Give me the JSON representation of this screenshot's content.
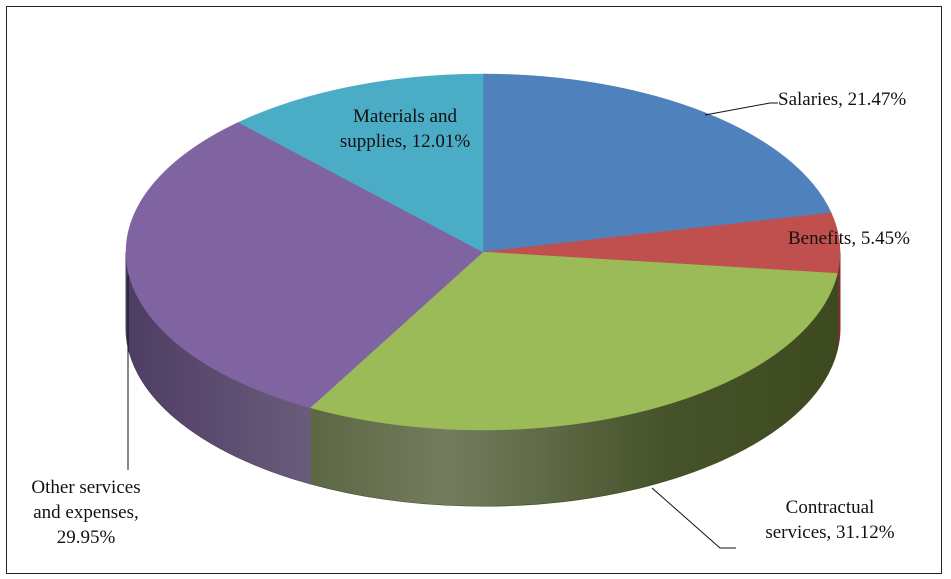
{
  "chart_data": {
    "type": "pie",
    "categories": [
      "Salaries",
      "Benefits",
      "Contractual services",
      "Other services and expenses",
      "Materials and supplies"
    ],
    "values": [
      21.47,
      5.45,
      31.12,
      29.95,
      12.01
    ],
    "unit": "%",
    "labels": [
      {
        "lines": [
          "Salaries, 21.47%"
        ]
      },
      {
        "lines": [
          "Benefits, 5.45%"
        ]
      },
      {
        "lines": [
          "Contractual",
          "services, 31.12%"
        ]
      },
      {
        "lines": [
          "Other services",
          "and expenses,",
          "29.95%"
        ]
      },
      {
        "lines": [
          "Materials and",
          "supplies, 12.01%"
        ]
      }
    ],
    "colors": [
      "#4f81bd",
      "#c0504d",
      "#9bbb59",
      "#8064a2",
      "#4bacc6"
    ],
    "side_colors": [
      "#2f4d73",
      "#7a302e",
      "#3d4a1f",
      "#4d3d63",
      "#2b6878"
    ],
    "style": "3d",
    "legend": "none",
    "title": ""
  }
}
